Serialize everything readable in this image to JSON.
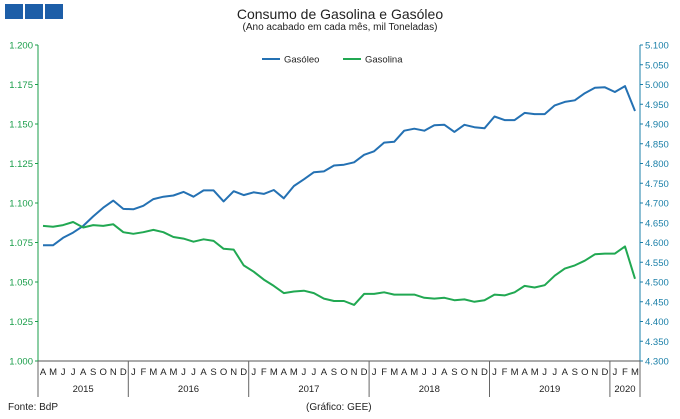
{
  "header": {
    "title": "Consumo de Gasolina e Gasóleo",
    "subtitle": "(Ano acabado em cada mês, mil Toneladas)"
  },
  "footer": {
    "source": "Fonte: BdP",
    "credit": "(Gráfico: GEE)"
  },
  "colors": {
    "gasoleo": "#2471b3",
    "gasolina": "#21a852",
    "axis_left": "#1a9e4a",
    "axis_right": "#1a7fa8",
    "logo": "#1d5ea8"
  },
  "chart_data": {
    "type": "line",
    "title": "Consumo de Gasolina e Gasóleo",
    "subtitle": "(Ano acabado em cada mês, mil Toneladas)",
    "legend_position": "top-center",
    "grid": false,
    "x": [
      "A",
      "M",
      "J",
      "J",
      "A",
      "S",
      "O",
      "N",
      "D",
      "J",
      "F",
      "M",
      "A",
      "M",
      "J",
      "J",
      "A",
      "S",
      "O",
      "N",
      "D",
      "J",
      "F",
      "M",
      "A",
      "M",
      "J",
      "J",
      "A",
      "S",
      "O",
      "N",
      "D",
      "J",
      "F",
      "M",
      "A",
      "M",
      "J",
      "J",
      "A",
      "S",
      "O",
      "N",
      "D",
      "J",
      "F",
      "M",
      "A",
      "M",
      "J",
      "J",
      "A",
      "S",
      "O",
      "N",
      "D",
      "J",
      "F",
      "M"
    ],
    "years": [
      {
        "label": "2015",
        "start": 0,
        "end": 8
      },
      {
        "label": "2016",
        "start": 9,
        "end": 20
      },
      {
        "label": "2017",
        "start": 21,
        "end": 32
      },
      {
        "label": "2018",
        "start": 33,
        "end": 44
      },
      {
        "label": "2019",
        "start": 45,
        "end": 56
      },
      {
        "label": "2020",
        "start": 57,
        "end": 59
      }
    ],
    "y_left": {
      "ticks": [
        "1.000",
        "1.025",
        "1.050",
        "1.075",
        "1.100",
        "1.125",
        "1.150",
        "1.175",
        "1.200"
      ],
      "range": [
        1000,
        1200
      ]
    },
    "y_right": {
      "ticks": [
        "4.300",
        "4.350",
        "4.400",
        "4.450",
        "4.500",
        "4.550",
        "4.600",
        "4.650",
        "4.700",
        "4.750",
        "4.800",
        "4.850",
        "4.900",
        "4.950",
        "5.000",
        "5.050",
        "5.100"
      ],
      "range": [
        4300,
        5100
      ]
    },
    "series": [
      {
        "name": "Gasóleo",
        "axis": "right",
        "color": "#2471b3",
        "values": [
          4593,
          4593,
          4612,
          4625,
          4642,
          4666,
          4688,
          4706,
          4685,
          4684,
          4693,
          4710,
          4716,
          4719,
          4728,
          4716,
          4732,
          4732,
          4704,
          4730,
          4720,
          4727,
          4723,
          4733,
          4712,
          4743,
          4760,
          4778,
          4780,
          4795,
          4797,
          4803,
          4822,
          4831,
          4853,
          4855,
          4883,
          4888,
          4883,
          4897,
          4898,
          4880,
          4898,
          4892,
          4889,
          4919,
          4910,
          4910,
          4928,
          4925,
          4925,
          4947,
          4956,
          4960,
          4978,
          4992,
          4993,
          4981,
          4996,
          4933
        ]
      },
      {
        "name": "Gasolina",
        "axis": "left",
        "color": "#21a852",
        "values": [
          1085.5,
          1085,
          1086,
          1088,
          1084.5,
          1086,
          1085.5,
          1086.5,
          1081.5,
          1080.5,
          1081.5,
          1083,
          1081.5,
          1078.5,
          1077.5,
          1075.5,
          1077,
          1076,
          1071,
          1070.5,
          1060.5,
          1056.5,
          1051.5,
          1047.5,
          1043,
          1044,
          1044.5,
          1043,
          1039.5,
          1038,
          1038,
          1035.5,
          1042.5,
          1042.5,
          1043.5,
          1042,
          1042,
          1042,
          1040,
          1039.5,
          1040,
          1038.5,
          1039,
          1037.5,
          1038.5,
          1042,
          1041.5,
          1043.5,
          1047.5,
          1046.5,
          1048,
          1054,
          1058.5,
          1060.5,
          1063.5,
          1067.5,
          1068,
          1068,
          1072.5,
          1052
        ]
      }
    ]
  }
}
